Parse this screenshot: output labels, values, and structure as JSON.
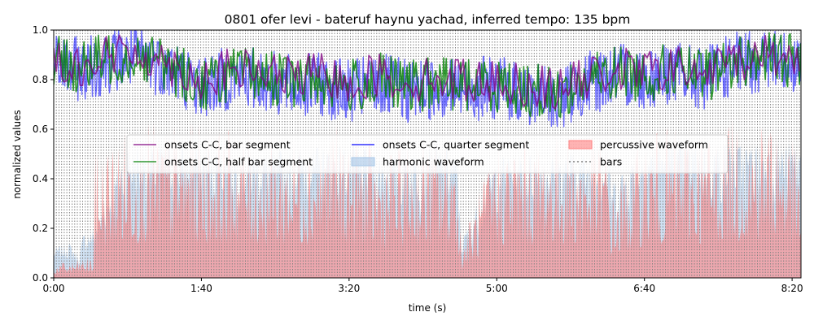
{
  "chart_data": {
    "type": "line",
    "title": "0801 ofer levi - bateruf haynu yachad, inferred tempo: 135 bpm",
    "xlabel": "time (s)",
    "ylabel": "normalized values",
    "xlim": [
      0,
      506
    ],
    "ylim": [
      0,
      1
    ],
    "x_ticks": [
      {
        "value": 0,
        "label": "0:00"
      },
      {
        "value": 100,
        "label": "1:40"
      },
      {
        "value": 200,
        "label": "3:20"
      },
      {
        "value": 300,
        "label": "5:00"
      },
      {
        "value": 400,
        "label": "6:40"
      },
      {
        "value": 500,
        "label": "8:20"
      }
    ],
    "y_ticks": [
      {
        "value": 0,
        "label": "0.0"
      },
      {
        "value": 0.2,
        "label": "0.2"
      },
      {
        "value": 0.4,
        "label": "0.4"
      },
      {
        "value": 0.6,
        "label": "0.6"
      },
      {
        "value": 0.8,
        "label": "0.8"
      },
      {
        "value": 1.0,
        "label": "1.0"
      }
    ],
    "bar_interval_s": 1.778,
    "legend_position": "center",
    "series": [
      {
        "name": "onsets C-C, bar segment",
        "kind": "line",
        "color": "#800080",
        "x": [
          0,
          20,
          40,
          60,
          80,
          100,
          120,
          140,
          160,
          180,
          200,
          220,
          240,
          260,
          280,
          300,
          320,
          340,
          360,
          380,
          400,
          420,
          440,
          460,
          480,
          500
        ],
        "values": [
          0.88,
          0.86,
          0.9,
          0.91,
          0.86,
          0.8,
          0.84,
          0.83,
          0.81,
          0.82,
          0.79,
          0.82,
          0.79,
          0.81,
          0.8,
          0.79,
          0.78,
          0.76,
          0.8,
          0.84,
          0.83,
          0.85,
          0.82,
          0.88,
          0.9,
          0.89
        ]
      },
      {
        "name": "onsets C-C, half bar segment",
        "kind": "line",
        "color": "#008000",
        "x": [
          0,
          20,
          40,
          60,
          80,
          100,
          120,
          140,
          160,
          180,
          200,
          220,
          240,
          260,
          280,
          300,
          320,
          340,
          360,
          380,
          400,
          420,
          440,
          460,
          480,
          500
        ],
        "values": [
          0.87,
          0.85,
          0.89,
          0.9,
          0.85,
          0.78,
          0.82,
          0.82,
          0.79,
          0.8,
          0.77,
          0.8,
          0.77,
          0.79,
          0.78,
          0.78,
          0.76,
          0.74,
          0.79,
          0.83,
          0.82,
          0.84,
          0.81,
          0.87,
          0.89,
          0.88
        ]
      },
      {
        "name": "onsets C-C, quarter segment",
        "kind": "line",
        "color": "#0000ff",
        "x": [
          0,
          20,
          40,
          60,
          80,
          100,
          120,
          140,
          160,
          180,
          200,
          220,
          240,
          260,
          280,
          300,
          320,
          340,
          360,
          380,
          400,
          420,
          440,
          460,
          480,
          500
        ],
        "values": [
          0.86,
          0.84,
          0.88,
          0.89,
          0.84,
          0.77,
          0.81,
          0.8,
          0.77,
          0.78,
          0.75,
          0.78,
          0.75,
          0.77,
          0.76,
          0.77,
          0.74,
          0.72,
          0.78,
          0.82,
          0.81,
          0.83,
          0.8,
          0.86,
          0.88,
          0.87
        ]
      },
      {
        "name": "harmonic waveform",
        "kind": "area",
        "color": "#a7c7e7",
        "x": [
          0,
          10,
          17,
          20,
          27,
          50,
          100,
          150,
          200,
          230,
          260,
          273,
          276,
          300,
          350,
          375,
          378,
          400,
          450,
          500
        ],
        "values": [
          0.12,
          0.15,
          0.09,
          0.18,
          0.2,
          0.55,
          0.55,
          0.52,
          0.55,
          0.5,
          0.55,
          0.5,
          0.15,
          0.5,
          0.52,
          0.5,
          0.4,
          0.55,
          0.55,
          0.55
        ]
      },
      {
        "name": "percussive waveform",
        "kind": "area",
        "color": "#ff8080",
        "x": [
          0,
          10,
          20,
          27,
          28,
          50,
          100,
          150,
          200,
          220,
          250,
          273,
          276,
          300,
          350,
          375,
          378,
          400,
          450,
          490,
          500,
          506
        ],
        "values": [
          0.05,
          0.06,
          0.07,
          0.08,
          0.45,
          0.55,
          0.55,
          0.5,
          0.55,
          0.45,
          0.5,
          0.5,
          0.12,
          0.5,
          0.52,
          0.5,
          0.3,
          0.52,
          0.55,
          0.6,
          0.5,
          0.35
        ]
      },
      {
        "name": "bars",
        "kind": "vlines",
        "color": "#808080"
      }
    ]
  }
}
